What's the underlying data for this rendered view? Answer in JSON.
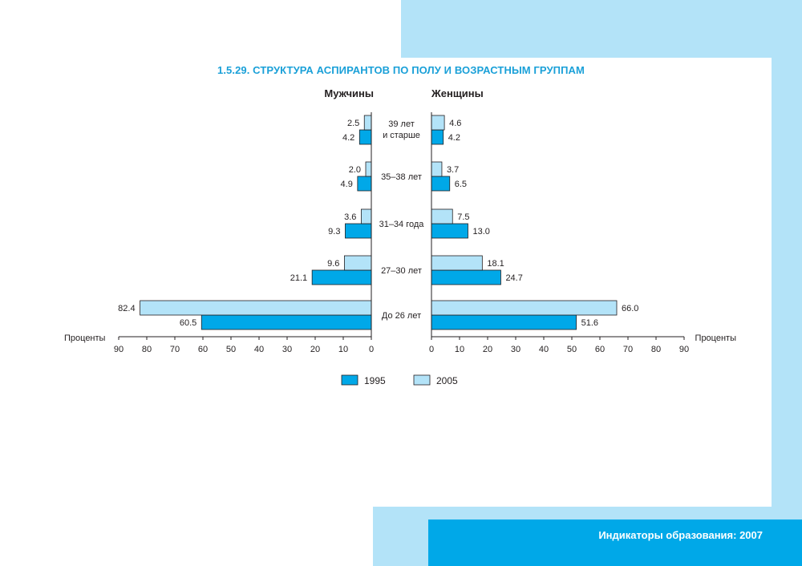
{
  "colors": {
    "background": "#ffffff",
    "accent_light": "#b3e3f8",
    "accent_dark": "#00a8e8",
    "title_color": "#1aa0d8",
    "bar_1995": "#00a8e8",
    "bar_2005": "#b3e3f8",
    "text": "#231f20"
  },
  "page": {
    "title": "1.5.29. СТРУКТУРА АСПИРАНТОВ ПО ПОЛУ И ВОЗРАСТНЫМ ГРУППАМ",
    "footer": "Индикаторы образования: 2007"
  },
  "chart_data": {
    "type": "bar",
    "orientation": "horizontal-population-pyramid",
    "categories": [
      [
        "39 лет",
        "и старше"
      ],
      [
        "35–38 лет"
      ],
      [
        "31–34 года"
      ],
      [
        "27–30 лет"
      ],
      [
        "До 26 лет"
      ]
    ],
    "panels": [
      {
        "name": "Мужчины",
        "series": [
          {
            "name": "1995",
            "values": [
              4.2,
              4.9,
              9.3,
              21.1,
              60.5
            ],
            "labels": [
              "4.2",
              "4.9",
              "9.3",
              "21.1",
              "60.5"
            ]
          },
          {
            "name": "2005",
            "values": [
              2.5,
              2.0,
              3.6,
              9.6,
              82.4
            ],
            "labels": [
              "2.5",
              "2.0",
              "3.6",
              "9.6",
              "82.4"
            ]
          }
        ]
      },
      {
        "name": "Женщины",
        "series": [
          {
            "name": "1995",
            "values": [
              4.2,
              6.5,
              13.0,
              24.7,
              51.6
            ],
            "labels": [
              "4.2",
              "6.5",
              "13.0",
              "24.7",
              "51.6"
            ]
          },
          {
            "name": "2005",
            "values": [
              4.6,
              3.7,
              7.5,
              18.1,
              66.0
            ],
            "labels": [
              "4.6",
              "3.7",
              "7.5",
              "18.1",
              "66.0"
            ]
          }
        ]
      }
    ],
    "xlabel": "Проценты",
    "xlim": [
      0,
      90
    ],
    "ticks": [
      0,
      10,
      20,
      30,
      40,
      50,
      60,
      70,
      80,
      90
    ],
    "legend": [
      "1995",
      "2005"
    ],
    "legend_position": "bottom-center",
    "grid": false
  }
}
